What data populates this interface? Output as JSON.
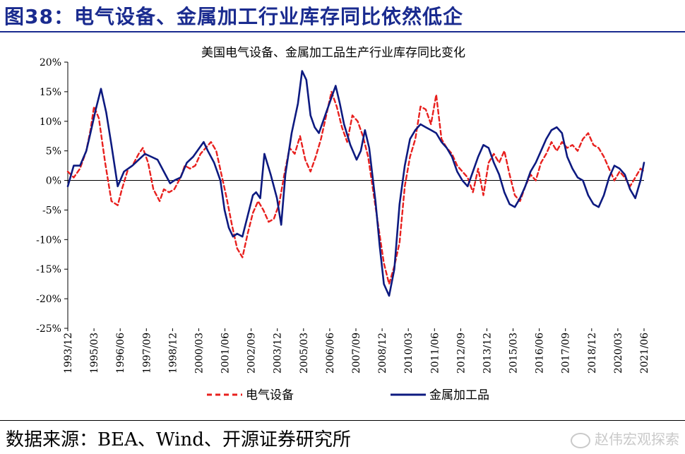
{
  "header": {
    "title": "图38：电气设备、金属加工行业库存同比依然低企"
  },
  "footer": {
    "source": "数据来源：BEA、Wind、开源证券研究所",
    "watermark": "赵伟宏观探索",
    "watermark_icon": "wechat-icon"
  },
  "colors": {
    "title": "#1a2b8f",
    "electrical": "#e8201e",
    "metal": "#0d1a80",
    "axis": "#000000"
  },
  "chart_data": {
    "type": "line",
    "title": "美国电气设备、金属加工品生产行业库存同比变化",
    "x_range": [
      1993.917,
      2021.417
    ],
    "ylim": [
      -25,
      20
    ],
    "yticks": [
      -25,
      -20,
      -15,
      -10,
      -5,
      0,
      5,
      10,
      15,
      20
    ],
    "ytick_labels": [
      "-25%",
      "-20%",
      "-15%",
      "-10%",
      "-5%",
      "0%",
      "5%",
      "10%",
      "15%",
      "20%"
    ],
    "xtick_labels": [
      "1993/12",
      "1995/03",
      "1996/06",
      "1997/09",
      "1998/12",
      "2000/03",
      "2001/06",
      "2002/09",
      "2003/12",
      "2005/03",
      "2006/06",
      "2007/09",
      "2008/12",
      "2010/03",
      "2011/06",
      "2012/09",
      "2013/12",
      "2015/03",
      "2016/06",
      "2017/09",
      "2018/12",
      "2020/03",
      "2021/06"
    ],
    "grid": false,
    "legend_position": "bottom",
    "series": [
      {
        "name": "电气设备",
        "style": "dashed",
        "color": "#e8201e",
        "x": [
          1993.917,
          1994.2,
          1994.5,
          1994.8,
          1995.0,
          1995.17,
          1995.4,
          1995.7,
          1996.0,
          1996.3,
          1996.5,
          1996.8,
          1997.0,
          1997.3,
          1997.5,
          1997.75,
          1998.0,
          1998.3,
          1998.5,
          1998.75,
          1999.0,
          1999.3,
          1999.5,
          1999.75,
          2000.0,
          2000.25,
          2000.5,
          2000.75,
          2001.0,
          2001.25,
          2001.5,
          2001.75,
          2002.0,
          2002.25,
          2002.5,
          2002.75,
          2003.0,
          2003.25,
          2003.5,
          2003.75,
          2004.0,
          2004.25,
          2004.5,
          2004.75,
          2005.0,
          2005.25,
          2005.5,
          2005.75,
          2006.0,
          2006.25,
          2006.5,
          2006.75,
          2007.0,
          2007.25,
          2007.5,
          2007.75,
          2008.0,
          2008.25,
          2008.5,
          2008.75,
          2009.0,
          2009.25,
          2009.5,
          2009.75,
          2010.0,
          2010.25,
          2010.5,
          2010.75,
          2011.0,
          2011.25,
          2011.5,
          2011.75,
          2012.0,
          2012.25,
          2012.5,
          2012.75,
          2013.0,
          2013.25,
          2013.5,
          2013.75,
          2014.0,
          2014.25,
          2014.5,
          2014.75,
          2015.0,
          2015.25,
          2015.5,
          2015.75,
          2016.0,
          2016.25,
          2016.5,
          2016.75,
          2017.0,
          2017.25,
          2017.5,
          2017.75,
          2018.0,
          2018.25,
          2018.5,
          2018.75,
          2019.0,
          2019.25,
          2019.5,
          2019.75,
          2020.0,
          2020.25,
          2020.5,
          2020.75,
          2021.0,
          2021.25,
          2021.417
        ],
        "values": [
          1.5,
          0.5,
          2.0,
          5.0,
          8.5,
          12.5,
          10.5,
          3.0,
          -3.5,
          -4.2,
          -1.5,
          2.0,
          2.5,
          4.5,
          5.5,
          3.0,
          -1.5,
          -3.5,
          -1.5,
          -2.0,
          -1.5,
          0.5,
          2.5,
          2.0,
          2.5,
          4.5,
          5.5,
          6.5,
          5.0,
          1.0,
          -3.0,
          -7.5,
          -11.5,
          -13.0,
          -9.0,
          -5.5,
          -3.5,
          -5.0,
          -7.0,
          -6.5,
          -4.0,
          1.0,
          5.5,
          4.5,
          7.5,
          3.5,
          1.5,
          4.0,
          7.0,
          11.0,
          15.0,
          12.5,
          9.0,
          6.5,
          11.0,
          10.0,
          7.5,
          4.0,
          -2.0,
          -8.0,
          -14.0,
          -17.5,
          -14.5,
          -10.5,
          -1.0,
          4.0,
          7.0,
          12.5,
          12.0,
          9.5,
          14.5,
          7.0,
          5.5,
          4.5,
          2.5,
          1.5,
          0.5,
          -2.0,
          2.0,
          -2.5,
          3.0,
          4.5,
          3.0,
          5.0,
          1.0,
          -2.5,
          -3.5,
          -1.0,
          1.0,
          0.0,
          3.0,
          4.5,
          6.5,
          5.0,
          6.5,
          5.5,
          6.0,
          5.0,
          7.0,
          8.0,
          6.0,
          5.5,
          4.0,
          2.0,
          0.0,
          1.5,
          0.5,
          -1.0,
          0.5,
          2.0,
          1.5
        ]
      },
      {
        "name": "金属加工品",
        "style": "solid",
        "color": "#0d1a80",
        "x": [
          1993.917,
          1994.2,
          1994.5,
          1994.8,
          1995.0,
          1995.25,
          1995.5,
          1995.75,
          1996.0,
          1996.3,
          1996.6,
          1997.0,
          1997.3,
          1997.6,
          1997.9,
          1998.2,
          1998.5,
          1998.8,
          1999.0,
          1999.3,
          1999.6,
          1999.9,
          2000.2,
          2000.4,
          2000.6,
          2000.9,
          2001.2,
          2001.4,
          2001.6,
          2001.8,
          2002.0,
          2002.25,
          2002.5,
          2002.75,
          2002.9,
          2003.1,
          2003.3,
          2003.6,
          2003.9,
          2004.1,
          2004.3,
          2004.6,
          2004.9,
          2005.1,
          2005.3,
          2005.5,
          2005.7,
          2005.9,
          2006.1,
          2006.4,
          2006.7,
          2006.9,
          2007.1,
          2007.4,
          2007.7,
          2007.9,
          2008.1,
          2008.3,
          2008.6,
          2008.8,
          2009.0,
          2009.25,
          2009.5,
          2009.75,
          2010.0,
          2010.25,
          2010.5,
          2010.75,
          2011.0,
          2011.25,
          2011.5,
          2011.75,
          2012.0,
          2012.25,
          2012.5,
          2012.75,
          2013.0,
          2013.25,
          2013.5,
          2013.75,
          2014.0,
          2014.25,
          2014.5,
          2014.75,
          2015.0,
          2015.25,
          2015.5,
          2015.75,
          2016.0,
          2016.25,
          2016.5,
          2016.75,
          2017.0,
          2017.25,
          2017.5,
          2017.75,
          2018.0,
          2018.25,
          2018.5,
          2018.75,
          2019.0,
          2019.25,
          2019.5,
          2019.75,
          2020.0,
          2020.25,
          2020.5,
          2020.75,
          2021.0,
          2021.25,
          2021.417
        ],
        "values": [
          -1.0,
          2.5,
          2.5,
          5.0,
          8.0,
          12.0,
          15.5,
          11.5,
          6.0,
          -1.0,
          1.5,
          2.5,
          3.5,
          4.5,
          4.0,
          3.5,
          1.5,
          -0.5,
          0.0,
          0.5,
          3.0,
          4.0,
          5.5,
          6.5,
          5.0,
          3.0,
          0.0,
          -5.0,
          -8.0,
          -9.5,
          -9.0,
          -9.5,
          -6.0,
          -2.5,
          -2.0,
          -3.0,
          4.5,
          1.0,
          -3.0,
          -7.5,
          1.0,
          8.0,
          13.0,
          18.5,
          17.0,
          11.0,
          9.0,
          8.0,
          10.0,
          13.0,
          16.0,
          13.0,
          9.5,
          6.0,
          3.5,
          5.0,
          8.5,
          5.5,
          -3.5,
          -11.0,
          -17.5,
          -19.5,
          -15.0,
          -4.0,
          2.5,
          7.0,
          8.5,
          9.5,
          9.0,
          8.5,
          8.0,
          6.5,
          5.5,
          4.0,
          1.5,
          0.0,
          -1.0,
          1.5,
          4.0,
          6.0,
          5.5,
          3.0,
          1.0,
          -2.0,
          -4.0,
          -4.5,
          -3.0,
          -1.0,
          1.5,
          3.0,
          5.0,
          7.0,
          8.5,
          9.0,
          8.0,
          4.0,
          2.0,
          0.5,
          0.0,
          -2.5,
          -4.0,
          -4.5,
          -2.5,
          0.5,
          2.5,
          2.0,
          1.0,
          -1.5,
          -3.0,
          0.0,
          3.0
        ]
      }
    ]
  }
}
